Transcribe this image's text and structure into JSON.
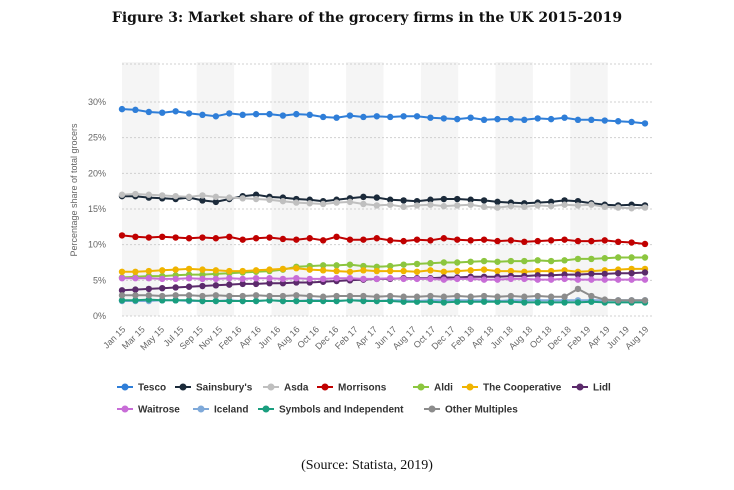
{
  "figure": {
    "title": "Figure 3: Market share of the grocery firms in the UK 2015-2019",
    "source": "(Source: Statista, 2019)"
  },
  "chart_data": {
    "type": "line",
    "title": "Figure 3: Market share of the grocery firms in the UK 2015-2019",
    "xlabel": "",
    "ylabel": "Percentage share of total grocers",
    "ylim": [
      0,
      30
    ],
    "yticks": [
      "0%",
      "5%",
      "10%",
      "15%",
      "20%",
      "25%",
      "30%"
    ],
    "grid": "horizontal dotted",
    "legend": "bottom",
    "x_labels": [
      "Jan 15",
      "Mar 15",
      "May 15",
      "Jul 15",
      "Sep 15",
      "Nov 15",
      "Feb 16",
      "Apr 16",
      "Jun 16",
      "Aug 16",
      "Oct 16",
      "Dec 16",
      "Feb 17",
      "Apr 17",
      "Jun 17",
      "Aug 17",
      "Oct 17",
      "Dec 17",
      "Feb 18",
      "Apr 18",
      "Jun 18",
      "Aug 18",
      "Oct 18",
      "Dec 18",
      "Feb 19",
      "Apr 19",
      "Jun 19",
      "Aug 19"
    ],
    "series": [
      {
        "name": "Tesco",
        "color": "#2f7ed8",
        "values": [
          29,
          28.9,
          28.6,
          28.5,
          28.7,
          28.4,
          28.2,
          28,
          28.4,
          28.2,
          28.3,
          28.3,
          28.1,
          28.3,
          28.2,
          27.9,
          27.8,
          28.1,
          27.9,
          28,
          27.9,
          28,
          28,
          27.8,
          27.7,
          27.6,
          27.8,
          27.5,
          27.6,
          27.6,
          27.5,
          27.7,
          27.6,
          27.8,
          27.5,
          27.5,
          27.4,
          27.3,
          27.2,
          27
        ]
      },
      {
        "name": "Sainsbury's",
        "color": "#1b2a3a",
        "values": [
          16.8,
          16.8,
          16.6,
          16.5,
          16.4,
          16.6,
          16.2,
          16,
          16.4,
          16.8,
          17,
          16.7,
          16.6,
          16.4,
          16.3,
          16.1,
          16.3,
          16.5,
          16.7,
          16.6,
          16.3,
          16.2,
          16.1,
          16.3,
          16.4,
          16.4,
          16.3,
          16.2,
          16,
          15.9,
          15.8,
          15.9,
          16,
          16.2,
          16.1,
          15.8,
          15.6,
          15.5,
          15.6,
          15.5
        ]
      },
      {
        "name": "Asda",
        "color": "#bfbfbf",
        "values": [
          17,
          17.1,
          17,
          16.9,
          16.8,
          16.7,
          16.9,
          16.7,
          16.6,
          16.5,
          16.4,
          16.3,
          16.1,
          15.9,
          15.8,
          15.7,
          15.9,
          16,
          15.7,
          15.5,
          15.6,
          15.3,
          15.5,
          15.6,
          15.4,
          15.5,
          15.6,
          15.3,
          15.2,
          15.4,
          15.3,
          15.5,
          15.4,
          15.6,
          15.5,
          15.6,
          15.3,
          15.2,
          15.1,
          15.2
        ]
      },
      {
        "name": "Morrisons",
        "color": "#c00000",
        "values": [
          11.3,
          11.1,
          11,
          11.1,
          11,
          10.9,
          11,
          10.9,
          11.1,
          10.7,
          10.9,
          11,
          10.8,
          10.7,
          10.9,
          10.6,
          11.1,
          10.7,
          10.7,
          10.9,
          10.6,
          10.5,
          10.7,
          10.6,
          10.9,
          10.7,
          10.6,
          10.7,
          10.5,
          10.6,
          10.4,
          10.5,
          10.6,
          10.7,
          10.5,
          10.5,
          10.6,
          10.4,
          10.3,
          10.1
        ]
      },
      {
        "name": "Aldi",
        "color": "#8cc63f",
        "values": [
          5.4,
          5.5,
          5.6,
          5.6,
          5.7,
          5.8,
          5.8,
          5.9,
          6,
          6.1,
          6.2,
          6.3,
          6.5,
          6.9,
          7,
          7.1,
          7.1,
          7.2,
          7,
          6.9,
          7,
          7.2,
          7.3,
          7.4,
          7.5,
          7.5,
          7.6,
          7.7,
          7.6,
          7.7,
          7.7,
          7.8,
          7.7,
          7.8,
          8,
          8,
          8.1,
          8.2,
          8.2,
          8.2
        ]
      },
      {
        "name": "The Cooperative",
        "color": "#f0b400",
        "values": [
          6.2,
          6.2,
          6.3,
          6.4,
          6.5,
          6.6,
          6.5,
          6.4,
          6.3,
          6.3,
          6.4,
          6.5,
          6.6,
          6.7,
          6.5,
          6.4,
          6.3,
          6.2,
          6.4,
          6.3,
          6.3,
          6.3,
          6.2,
          6.4,
          6.2,
          6.3,
          6.4,
          6.5,
          6.3,
          6.3,
          6.2,
          6.3,
          6.3,
          6.4,
          6.2,
          6.3,
          6.4,
          6.5,
          6.6,
          6.6
        ]
      },
      {
        "name": "Lidl",
        "color": "#5b2a6b",
        "values": [
          3.6,
          3.7,
          3.8,
          3.9,
          4,
          4.1,
          4.2,
          4.3,
          4.4,
          4.5,
          4.5,
          4.6,
          4.6,
          4.7,
          4.7,
          4.8,
          4.9,
          5,
          5.1,
          5.2,
          5.2,
          5.3,
          5.3,
          5.3,
          5.4,
          5.4,
          5.5,
          5.5,
          5.5,
          5.6,
          5.6,
          5.7,
          5.7,
          5.8,
          5.8,
          5.9,
          5.9,
          6,
          6,
          6.1
        ]
      },
      {
        "name": "Waitrose",
        "color": "#c86dd7",
        "values": [
          5.3,
          5.3,
          5.3,
          5.2,
          5.2,
          5.3,
          5.2,
          5.2,
          5.3,
          5.2,
          5.3,
          5.3,
          5.2,
          5.3,
          5.2,
          5.2,
          5.3,
          5.3,
          5.2,
          5.2,
          5.3,
          5.2,
          5.2,
          5.2,
          5.1,
          5.2,
          5.2,
          5.1,
          5.1,
          5.2,
          5.2,
          5.1,
          5.1,
          5.2,
          5.1,
          5.1,
          5.1,
          5.1,
          5.1,
          5.1
        ]
      },
      {
        "name": "Iceland",
        "color": "#7fa9d9",
        "values": [
          2.1,
          2.1,
          2.1,
          2.2,
          2.2,
          2.1,
          2.1,
          2.1,
          2.2,
          2.1,
          2.1,
          2.2,
          2.1,
          2.1,
          2.2,
          2.2,
          2.1,
          2.2,
          2.2,
          2.1,
          2.2,
          2.2,
          2.1,
          2.2,
          2.2,
          2.2,
          2.2,
          2.2,
          2.1,
          2.2,
          2.2,
          2.2,
          2.2,
          2.2,
          2.2,
          2.2,
          2.2,
          2.2,
          2.2,
          2.2
        ]
      },
      {
        "name": "Symbols and Independent",
        "color": "#1a9e7f",
        "values": [
          2.2,
          2.2,
          2.3,
          2.2,
          2.2,
          2.2,
          2.1,
          2.1,
          2.1,
          2.1,
          2.1,
          2.2,
          2.1,
          2.1,
          2.1,
          2.1,
          2.1,
          2.2,
          2.1,
          2.1,
          2.1,
          2,
          2,
          2,
          1.9,
          2,
          2,
          2,
          2,
          2,
          1.9,
          1.9,
          1.9,
          1.9,
          1.9,
          2,
          1.9,
          1.9,
          1.9,
          1.9
        ]
      },
      {
        "name": "Other Multiples",
        "color": "#8c8c8c",
        "values": [
          2.9,
          2.9,
          2.9,
          2.8,
          2.9,
          2.9,
          2.8,
          2.9,
          2.8,
          2.8,
          2.9,
          2.8,
          2.8,
          2.9,
          2.8,
          2.7,
          2.8,
          2.8,
          2.8,
          2.7,
          2.8,
          2.7,
          2.7,
          2.8,
          2.7,
          2.8,
          2.7,
          2.8,
          2.7,
          2.8,
          2.7,
          2.8,
          2.7,
          2.7,
          3.8,
          2.8,
          2.3,
          2.2,
          2.2,
          2.2
        ]
      }
    ]
  }
}
